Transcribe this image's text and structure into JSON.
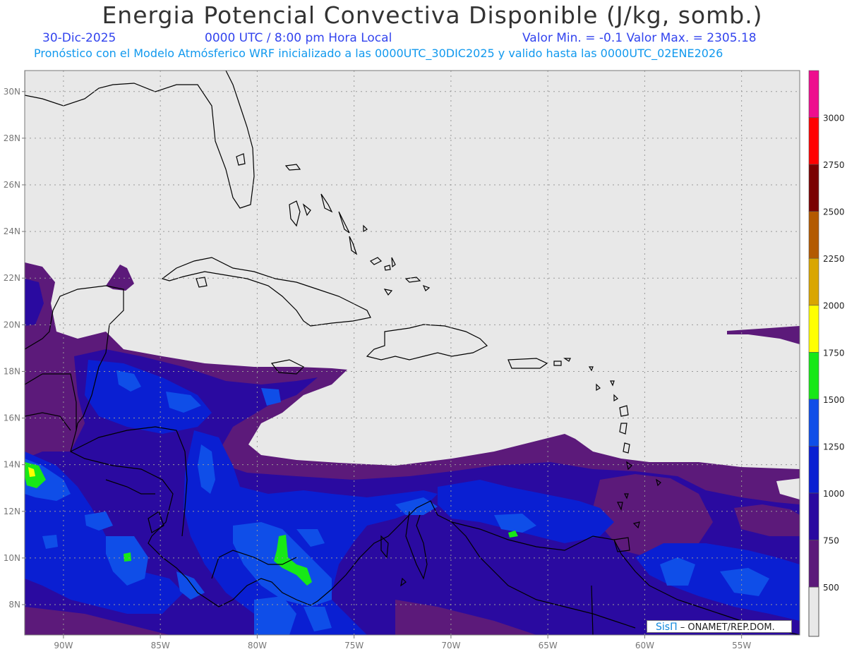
{
  "header": {
    "title": "Energia Potencial Convectiva Disponible (J/kg, somb.)",
    "date": "30-Dic-2025",
    "time": "0000 UTC / 8:00 pm Hora Local",
    "minmax": "Valor Min. = -0.1  Valor Max. = 2305.18",
    "forecast": "Pronóstico con el Modelo Atmósferico WRF inicializado a las 0000UTC_30DIC2025 y valido hasta las  0000UTC_02ENE2026"
  },
  "map": {
    "lon_range": [
      -92,
      -52
    ],
    "lat_range": [
      6.7,
      30.9
    ],
    "lon_ticks": [
      {
        "value": -90,
        "label": "90W"
      },
      {
        "value": -85,
        "label": "85W"
      },
      {
        "value": -80,
        "label": "80W"
      },
      {
        "value": -75,
        "label": "75W"
      },
      {
        "value": -70,
        "label": "70W"
      },
      {
        "value": -65,
        "label": "65W"
      },
      {
        "value": -60,
        "label": "60W"
      },
      {
        "value": -55,
        "label": "55W"
      }
    ],
    "lat_ticks": [
      {
        "value": 8,
        "label": "8N"
      },
      {
        "value": 10,
        "label": "10N"
      },
      {
        "value": 12,
        "label": "12N"
      },
      {
        "value": 14,
        "label": "14N"
      },
      {
        "value": 16,
        "label": "16N"
      },
      {
        "value": 18,
        "label": "18N"
      },
      {
        "value": 20,
        "label": "20N"
      },
      {
        "value": 22,
        "label": "22N"
      },
      {
        "value": 24,
        "label": "24N"
      },
      {
        "value": 26,
        "label": "26N"
      },
      {
        "value": 28,
        "label": "28N"
      },
      {
        "value": 30,
        "label": "30N"
      }
    ],
    "background_color": "#e8e8e8",
    "coastline_color": "#000000",
    "grid": true
  },
  "colorbar": {
    "levels": [
      {
        "label": "500",
        "color": "#5c1a7a"
      },
      {
        "label": "750",
        "color": "#2a0aa0"
      },
      {
        "label": "1000",
        "color": "#0a1fd2"
      },
      {
        "label": "1250",
        "color": "#0f4ee8"
      },
      {
        "label": "1500",
        "color": "#17e817"
      },
      {
        "label": "1750",
        "color": "#ffff00"
      },
      {
        "label": "2000",
        "color": "#d9a600"
      },
      {
        "label": "2250",
        "color": "#b35a00"
      },
      {
        "label": "2500",
        "color": "#7a0000"
      },
      {
        "label": "2750",
        "color": "#ff0000"
      },
      {
        "label": "3000",
        "color": "#ee0e8e"
      }
    ],
    "base_color": "#e8e8e8"
  },
  "credit": {
    "sis": "SisΠ",
    "text": "– ONAMET/REP.DOM."
  }
}
